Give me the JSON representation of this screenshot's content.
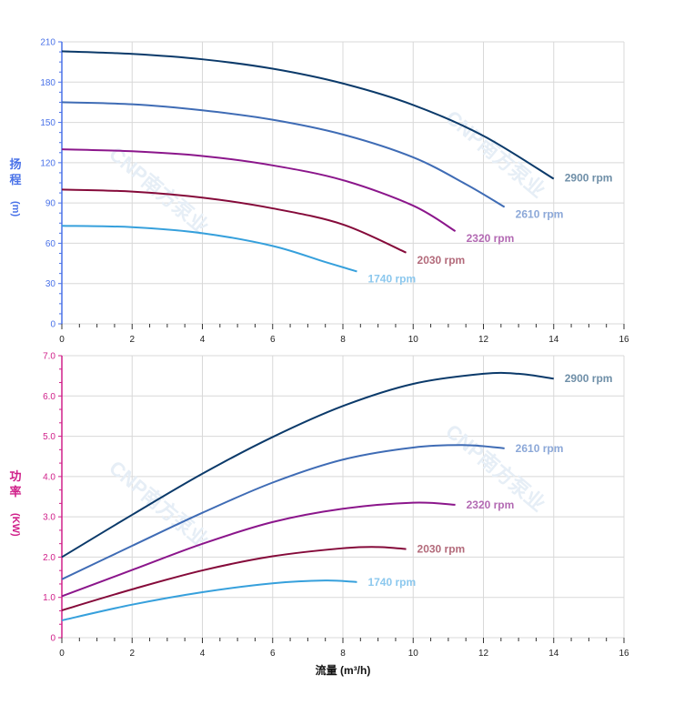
{
  "chart_data": [
    {
      "type": "line",
      "ylabel_chars": [
        "扬",
        "程"
      ],
      "ylabel_unit": "(m)",
      "xlim": [
        0,
        16
      ],
      "ylim": [
        0,
        210
      ],
      "x_ticks": [
        "0",
        "2",
        "4",
        "6",
        "8",
        "10",
        "12",
        "14",
        "16"
      ],
      "y_ticks": [
        "0",
        "30",
        "60",
        "90",
        "120",
        "150",
        "180",
        "210"
      ],
      "grid": true,
      "tick_color": "#4a72e8",
      "series": [
        {
          "name": "2900 rpm",
          "color": "#0b3a6a",
          "label_color": "#6f8fa8",
          "points": [
            [
              0,
              203
            ],
            [
              2,
              201
            ],
            [
              4,
              197
            ],
            [
              6,
              190
            ],
            [
              8,
              179
            ],
            [
              10,
              163
            ],
            [
              12,
              140
            ],
            [
              14,
              108
            ]
          ]
        },
        {
          "name": "2610 rpm",
          "color": "#3f6cb5",
          "label_color": "#8ca8d8",
          "points": [
            [
              0,
              165
            ],
            [
              2,
              163.5
            ],
            [
              4,
              159
            ],
            [
              6,
              152
            ],
            [
              8,
              141
            ],
            [
              10,
              124
            ],
            [
              11.5,
              104
            ],
            [
              12.6,
              87
            ]
          ]
        },
        {
          "name": "2320 rpm",
          "color": "#8b168b",
          "label_color": "#b36ab3",
          "points": [
            [
              0,
              130
            ],
            [
              2,
              128.5
            ],
            [
              4,
              125
            ],
            [
              6,
              118
            ],
            [
              8,
              107
            ],
            [
              10,
              88
            ],
            [
              11.2,
              69
            ]
          ]
        },
        {
          "name": "2030 rpm",
          "color": "#850a3a",
          "label_color": "#b36b7b",
          "points": [
            [
              0,
              100
            ],
            [
              2,
              98.5
            ],
            [
              4,
              94
            ],
            [
              6,
              86
            ],
            [
              8,
              74
            ],
            [
              9.8,
              53
            ]
          ]
        },
        {
          "name": "1740 rpm",
          "color": "#36a0dc",
          "label_color": "#8cc8ee",
          "points": [
            [
              0,
              73
            ],
            [
              2,
              72
            ],
            [
              4,
              67.5
            ],
            [
              6,
              58
            ],
            [
              7.5,
              46
            ],
            [
              8.4,
              39
            ]
          ]
        }
      ]
    },
    {
      "type": "line",
      "ylabel_chars": [
        "功",
        "率"
      ],
      "ylabel_unit": "(KW)",
      "xlabel": "流量 (m³/h)",
      "xlim": [
        0,
        16
      ],
      "ylim": [
        0,
        7
      ],
      "x_ticks": [
        "0",
        "2",
        "4",
        "6",
        "8",
        "10",
        "12",
        "14",
        "16"
      ],
      "y_ticks": [
        "0",
        "1.0",
        "2.0",
        "3.0",
        "4.0",
        "5.0",
        "6.0",
        "7.0"
      ],
      "grid": true,
      "tick_color": "#d0208a",
      "series": [
        {
          "name": "2900 rpm",
          "color": "#0b3a6a",
          "label_color": "#6f8fa8",
          "points": [
            [
              0,
              2.0
            ],
            [
              2,
              3.05
            ],
            [
              4,
              4.07
            ],
            [
              6,
              4.98
            ],
            [
              8,
              5.75
            ],
            [
              10,
              6.3
            ],
            [
              12,
              6.55
            ],
            [
              13,
              6.55
            ],
            [
              14,
              6.43
            ]
          ]
        },
        {
          "name": "2610 rpm",
          "color": "#3f6cb5",
          "label_color": "#8ca8d8",
          "points": [
            [
              0,
              1.45
            ],
            [
              2,
              2.28
            ],
            [
              4,
              3.1
            ],
            [
              6,
              3.85
            ],
            [
              8,
              4.42
            ],
            [
              10,
              4.72
            ],
            [
              11.5,
              4.78
            ],
            [
              12.6,
              4.7
            ]
          ]
        },
        {
          "name": "2320 rpm",
          "color": "#8b168b",
          "label_color": "#b36ab3",
          "points": [
            [
              0,
              1.03
            ],
            [
              2,
              1.68
            ],
            [
              4,
              2.33
            ],
            [
              6,
              2.87
            ],
            [
              8,
              3.2
            ],
            [
              10,
              3.35
            ],
            [
              11.2,
              3.3
            ]
          ]
        },
        {
          "name": "2030 rpm",
          "color": "#850a3a",
          "label_color": "#b36b7b",
          "points": [
            [
              0,
              0.68
            ],
            [
              2,
              1.2
            ],
            [
              4,
              1.67
            ],
            [
              6,
              2.02
            ],
            [
              8,
              2.22
            ],
            [
              9,
              2.25
            ],
            [
              9.8,
              2.2
            ]
          ]
        },
        {
          "name": "1740 rpm",
          "color": "#36a0dc",
          "label_color": "#8cc8ee",
          "points": [
            [
              0,
              0.43
            ],
            [
              2,
              0.82
            ],
            [
              4,
              1.13
            ],
            [
              6,
              1.35
            ],
            [
              7.5,
              1.42
            ],
            [
              8.4,
              1.38
            ]
          ]
        }
      ]
    }
  ],
  "watermark": "CNP南方泵业"
}
